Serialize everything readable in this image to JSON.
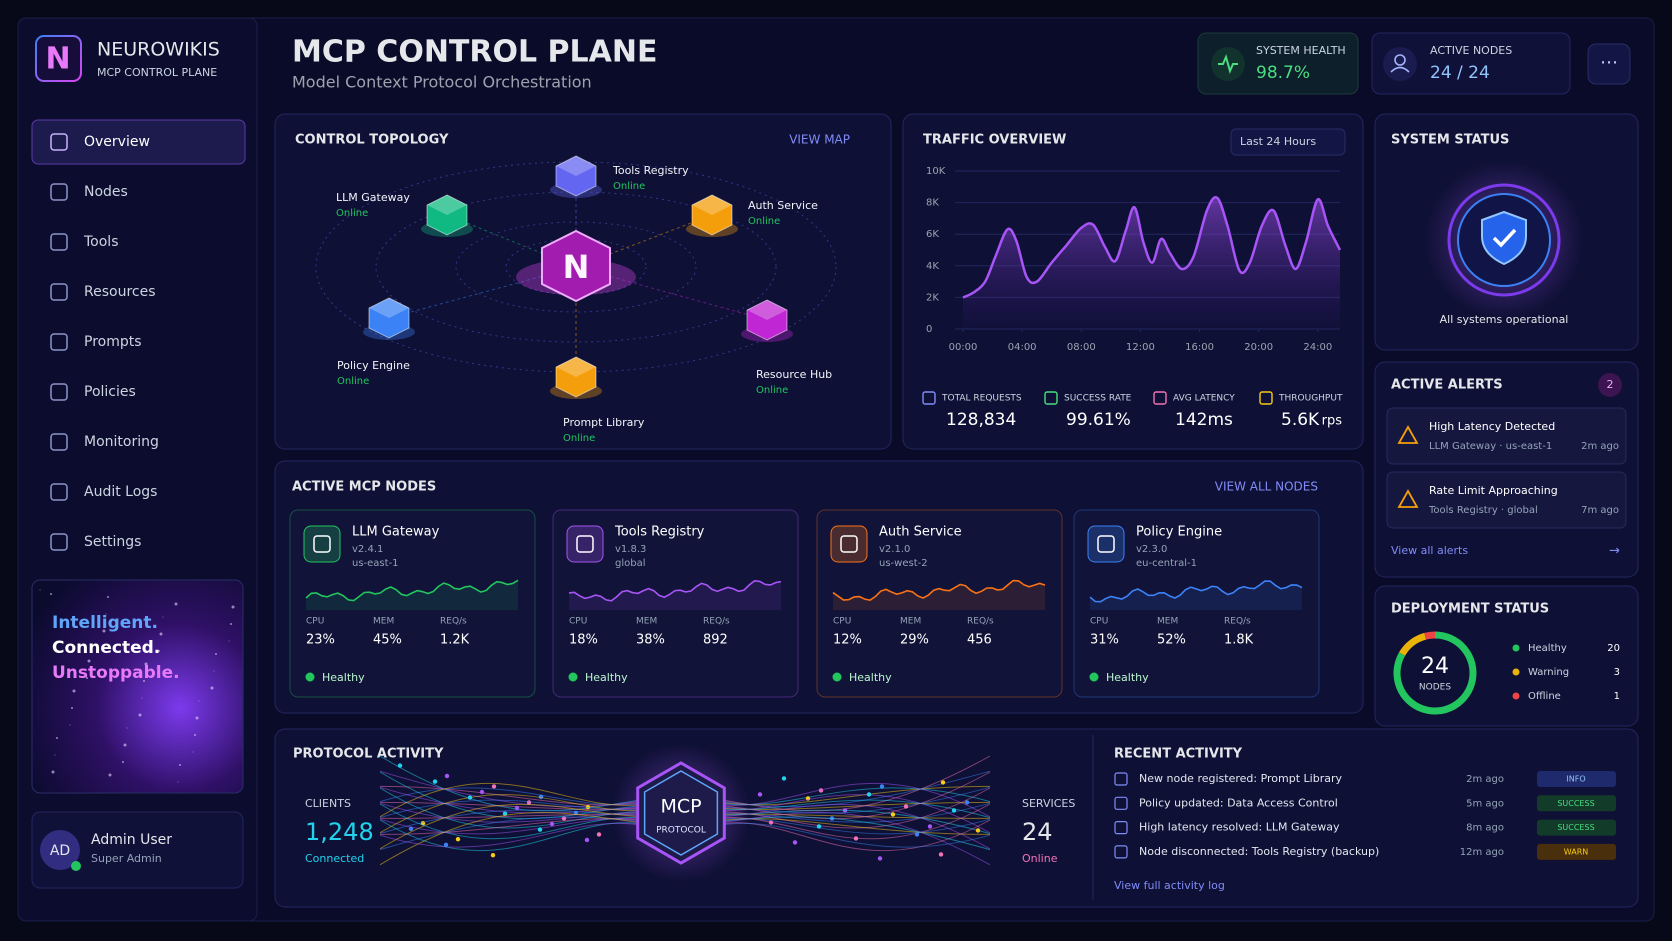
{
  "brand": {
    "logo": "N",
    "name": "NEUROWIKIS",
    "subtitle": "MCP CONTROL PLANE"
  },
  "nav": [
    "Overview",
    "Nodes",
    "Tools",
    "Resources",
    "Prompts",
    "Policies",
    "Monitoring",
    "Audit Logs",
    "Settings"
  ],
  "promo": [
    "Intelligent.",
    "Connected.",
    "Unstoppable."
  ],
  "user": {
    "initials": "AD",
    "name": "Admin User",
    "role": "Super Admin"
  },
  "header": {
    "title": "MCP CONTROL PLANE",
    "subtitle": "Model Context Protocol Orchestration"
  },
  "stats": [
    {
      "label": "SYSTEM HEALTH",
      "value": "98.7%"
    },
    {
      "label": "ACTIVE NODES",
      "value": "24 / 24"
    }
  ],
  "topology": {
    "title": "CONTROL TOPOLOGY",
    "link": "VIEW MAP",
    "center": "N",
    "nodes": [
      {
        "name": "Tools Registry",
        "status": "Online"
      },
      {
        "name": "LLM Gateway",
        "status": "Online"
      },
      {
        "name": "Auth Service",
        "status": "Online"
      },
      {
        "name": "Policy Engine",
        "status": "Online"
      },
      {
        "name": "Resource Hub",
        "status": "Online"
      },
      {
        "name": "Prompt Library",
        "status": "Online"
      }
    ]
  },
  "chart_data": [
    {
      "type": "line",
      "title": "TRAFFIC OVERVIEW",
      "range": "Last 24 Hours",
      "color": "#a855f7",
      "grid": true,
      "x": [
        0,
        0.7,
        1.5,
        2.2,
        3,
        3.6,
        4.3,
        5,
        6,
        7,
        8,
        8.8,
        9.6,
        10.3,
        11,
        11.6,
        12.2,
        12.8,
        13.4,
        14,
        14.8,
        15.6,
        16.5,
        17.2,
        17.9,
        18.7,
        19.4,
        20.2,
        21,
        21.8,
        22.5,
        23.2,
        24,
        24.7,
        25.5
      ],
      "values": [
        2000,
        2300,
        3000,
        4600,
        6300,
        5600,
        3300,
        3000,
        4200,
        5300,
        6400,
        6600,
        5200,
        4300,
        6200,
        7700,
        5500,
        4200,
        5700,
        4800,
        3800,
        4600,
        7500,
        8300,
        6500,
        3700,
        4200,
        6500,
        7500,
        5300,
        3800,
        5500,
        8200,
        6500,
        5000
      ],
      "xlim": [
        0,
        25.5
      ],
      "xticks": [
        {
          "value": 0,
          "label": "00:00"
        },
        {
          "value": 4,
          "label": "04:00"
        },
        {
          "value": 8,
          "label": "08:00"
        },
        {
          "value": 12,
          "label": "12:00"
        },
        {
          "value": 16,
          "label": "16:00"
        },
        {
          "value": 20,
          "label": "20:00"
        },
        {
          "value": 24,
          "label": "24:00"
        }
      ],
      "ylim": [
        0,
        10000
      ],
      "yticks": [
        0,
        {
          "value": 2000,
          "label": "2K"
        },
        {
          "value": 4000,
          "label": "4K"
        },
        {
          "value": 6000,
          "label": "6K"
        },
        {
          "value": 8000,
          "label": "8K"
        },
        {
          "value": 10000,
          "label": "10K"
        }
      ]
    },
    {
      "type": "donut",
      "title": "DEPLOYMENT STATUS",
      "total": 24,
      "unit": "NODES",
      "categories": [
        "Healthy",
        "Warning",
        "Offline"
      ],
      "values": [
        20,
        3,
        1
      ],
      "colors": [
        "#22c55e",
        "#eab308",
        "#ef4444"
      ]
    }
  ],
  "traffic_metrics": [
    {
      "label": "TOTAL REQUESTS",
      "value": "128,834"
    },
    {
      "label": "SUCCESS RATE",
      "value": "99.61%"
    },
    {
      "label": "AVG LATENCY",
      "value": "142ms"
    },
    {
      "label": "THROUGHPUT",
      "value": "5.6K",
      "unit": "rps"
    }
  ],
  "system_status": {
    "title": "SYSTEM STATUS",
    "message": "All systems operational"
  },
  "alerts": {
    "title": "ACTIVE ALERTS",
    "count": "2",
    "items": [
      {
        "title": "High Latency Detected",
        "source": "LLM Gateway · us-east-1",
        "time": "2m ago"
      },
      {
        "title": "Rate Limit Approaching",
        "source": "Tools Registry · global",
        "time": "7m ago"
      }
    ],
    "link": "View all alerts"
  },
  "mcp_nodes": {
    "title": "ACTIVE MCP NODES",
    "link": "VIEW ALL NODES",
    "metric_labels": [
      "CPU",
      "MEM",
      "REQ/s"
    ],
    "items": [
      {
        "name": "LLM Gateway",
        "version": "v2.4.1",
        "region": "us-east-1",
        "metrics": [
          "23%",
          "45%",
          "1.2K"
        ],
        "status": "Healthy"
      },
      {
        "name": "Tools Registry",
        "version": "v1.8.3",
        "region": "global",
        "metrics": [
          "18%",
          "38%",
          "892"
        ],
        "status": "Healthy"
      },
      {
        "name": "Auth Service",
        "version": "v2.1.0",
        "region": "us-west-2",
        "metrics": [
          "12%",
          "29%",
          "456"
        ],
        "status": "Healthy"
      },
      {
        "name": "Policy Engine",
        "version": "v2.3.0",
        "region": "eu-central-1",
        "metrics": [
          "31%",
          "52%",
          "1.8K"
        ],
        "status": "Healthy"
      }
    ]
  },
  "protocol": {
    "title": "PROTOCOL ACTIVITY",
    "clients_label": "CLIENTS",
    "clients": "1,248",
    "clients_status": "Connected",
    "hub": "MCP",
    "hub_sub": "PROTOCOL",
    "services_label": "SERVICES",
    "services": "24",
    "services_status": "Online"
  },
  "activity": {
    "title": "RECENT ACTIVITY",
    "items": [
      {
        "text": "New node registered: Prompt Library",
        "time": "2m ago",
        "level": "INFO"
      },
      {
        "text": "Policy updated: Data Access Control",
        "time": "5m ago",
        "level": "SUCCESS"
      },
      {
        "text": "High latency resolved: LLM Gateway",
        "time": "8m ago",
        "level": "SUCCESS"
      },
      {
        "text": "Node disconnected: Tools Registry (backup)",
        "time": "12m ago",
        "level": "WARN"
      }
    ],
    "link": "View full activity log"
  }
}
